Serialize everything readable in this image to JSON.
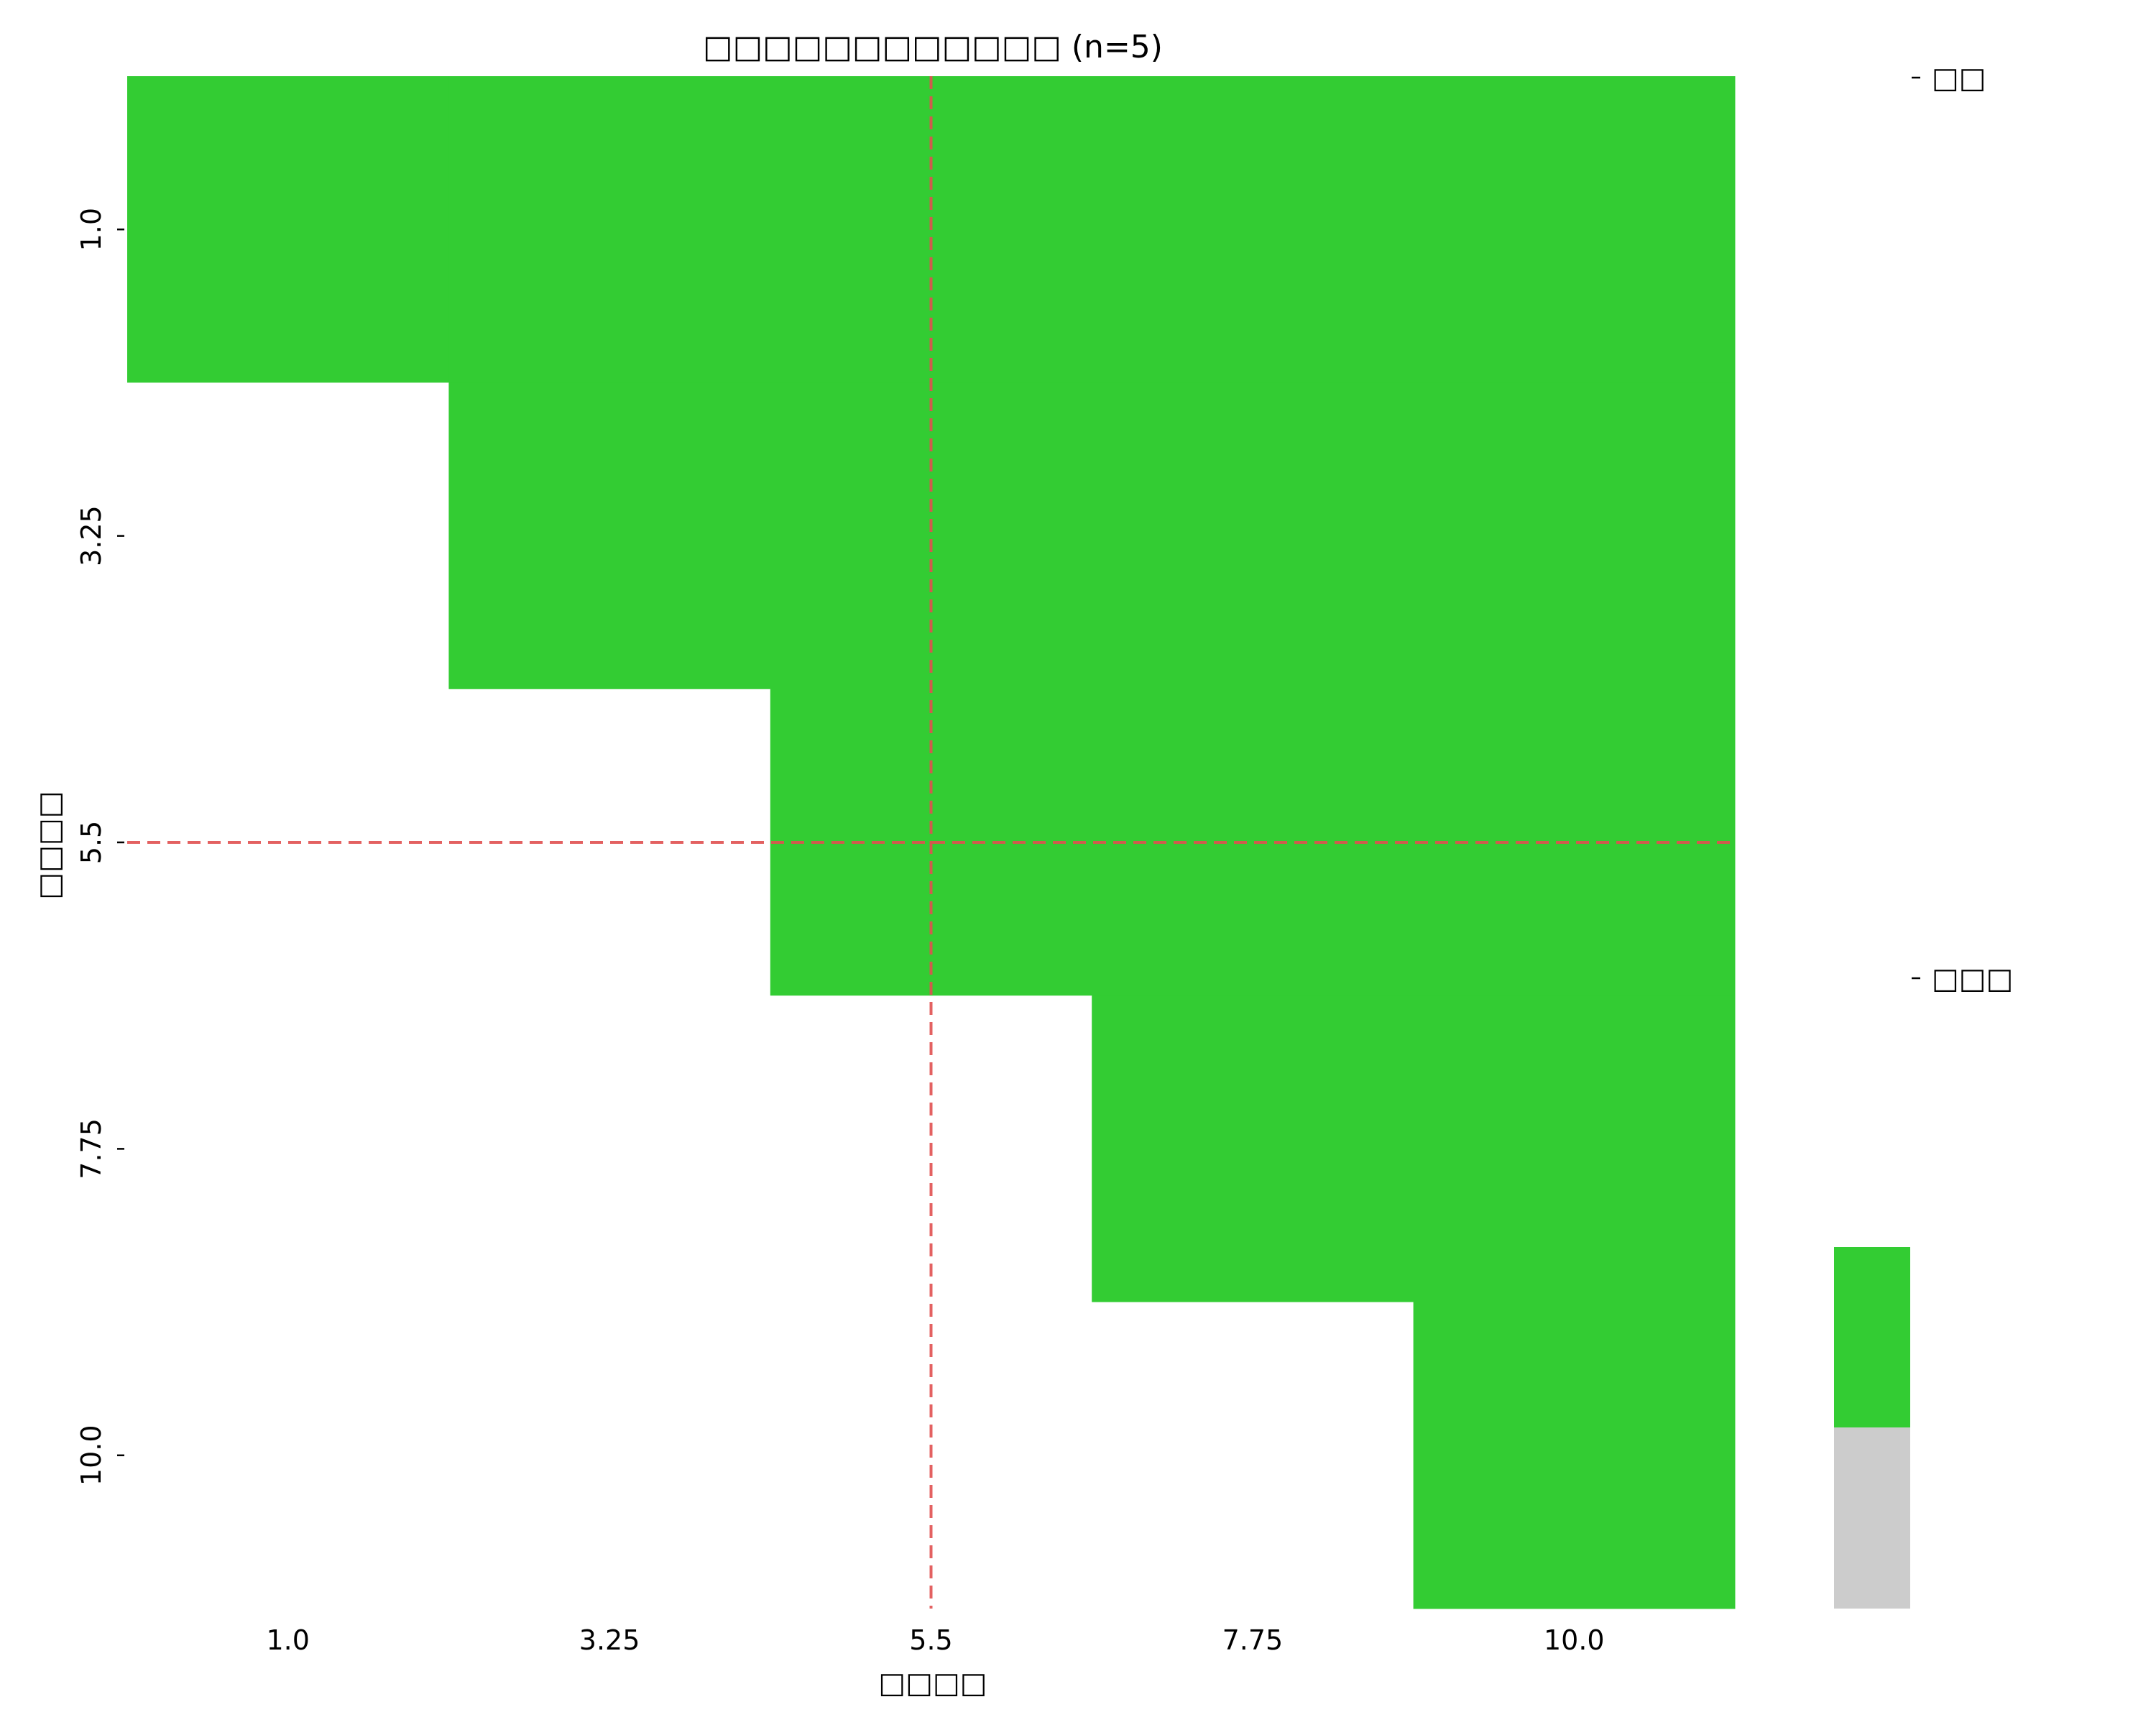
{
  "chart_data": {
    "type": "heatmap",
    "title": "□□□□□□□□□□□□ (n=5)",
    "xlabel": "□□□□",
    "ylabel": "□□□□",
    "x_ticks": [
      "1.0",
      "3.25",
      "5.5",
      "7.75",
      "10.0"
    ],
    "y_ticks": [
      "1.0",
      "3.25",
      "5.5",
      "7.75",
      "10.0"
    ],
    "x": [
      1.0,
      3.25,
      5.5,
      7.75,
      10.0
    ],
    "y": [
      1.0,
      3.25,
      5.5,
      7.75,
      10.0
    ],
    "values": [
      [
        1,
        1,
        1,
        1,
        1
      ],
      [
        0,
        1,
        1,
        1,
        1
      ],
      [
        0,
        0,
        1,
        1,
        1
      ],
      [
        0,
        0,
        0,
        1,
        1
      ],
      [
        0,
        0,
        0,
        0,
        1
      ]
    ],
    "reference_lines": [
      {
        "orientation": "vertical",
        "value": 5.5,
        "color": "#e05050",
        "style": "dashed"
      },
      {
        "orientation": "horizontal",
        "value": 5.5,
        "color": "#e05050",
        "style": "dashed"
      }
    ],
    "colorbar": {
      "labels": [
        "□□",
        "□□□"
      ],
      "colors": [
        "#33cc33",
        "#cccccc"
      ]
    },
    "cell_colors": {
      "1": "#33cc33",
      "0": "#ffffff"
    },
    "grid": false
  }
}
